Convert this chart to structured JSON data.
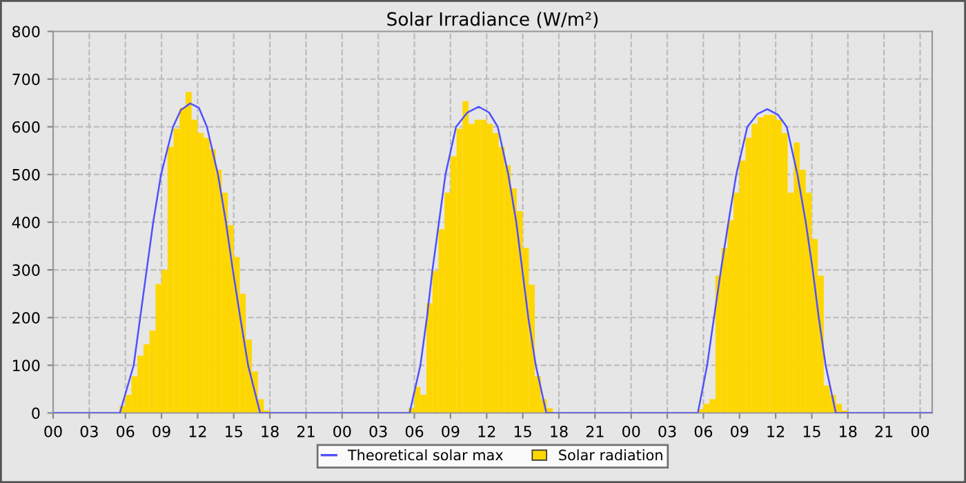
{
  "chart_data": {
    "type": "bar",
    "title": "Solar Irradiance (W/m²)",
    "xlim": [
      0,
      73
    ],
    "ylim": [
      0,
      800
    ],
    "yticks": [
      0,
      100,
      200,
      300,
      400,
      500,
      600,
      700,
      800
    ],
    "xticks": [
      {
        "value": 0,
        "label": "00"
      },
      {
        "value": 3,
        "label": "03"
      },
      {
        "value": 6,
        "label": "06"
      },
      {
        "value": 9,
        "label": "09"
      },
      {
        "value": 12,
        "label": "12"
      },
      {
        "value": 15,
        "label": "15"
      },
      {
        "value": 18,
        "label": "18"
      },
      {
        "value": 21,
        "label": "21"
      },
      {
        "value": 24,
        "label": "00"
      },
      {
        "value": 27,
        "label": "03"
      },
      {
        "value": 30,
        "label": "06"
      },
      {
        "value": 33,
        "label": "09"
      },
      {
        "value": 36,
        "label": "12"
      },
      {
        "value": 39,
        "label": "15"
      },
      {
        "value": 42,
        "label": "18"
      },
      {
        "value": 45,
        "label": "21"
      },
      {
        "value": 48,
        "label": "00"
      },
      {
        "value": 51,
        "label": "03"
      },
      {
        "value": 54,
        "label": "06"
      },
      {
        "value": 57,
        "label": "09"
      },
      {
        "value": 60,
        "label": "12"
      },
      {
        "value": 63,
        "label": "15"
      },
      {
        "value": 66,
        "label": "18"
      },
      {
        "value": 69,
        "label": "21"
      },
      {
        "value": 72,
        "label": "00"
      }
    ],
    "grid": true,
    "legend": "bottom",
    "series": [
      {
        "name": "Theoretical solar max",
        "type": "line",
        "color": "#5050ff",
        "line_style": "solid",
        "marker": "none",
        "x": [
          0,
          5.54,
          6.69,
          7.23,
          7.77,
          8.31,
          8.96,
          9.96,
          10.6,
          11.38,
          12.1,
          12.77,
          13.69,
          14.35,
          14.92,
          15.54,
          16.19,
          17.19,
          29.6,
          30.5,
          31.04,
          31.5,
          32.04,
          32.58,
          33.46,
          34.4,
          35.35,
          36.2,
          36.92,
          37.8,
          38.46,
          38.96,
          39.46,
          40.08,
          40.96,
          53.54,
          54.31,
          54.88,
          55.46,
          56.08,
          56.73,
          57.65,
          58.5,
          59.31,
          60.2,
          60.92,
          61.81,
          62.5,
          63.08,
          63.58,
          64.15,
          65.0,
          73
        ],
        "values": [
          0,
          0,
          100,
          200,
          300,
          400,
          500,
          600,
          635,
          649,
          640,
          600,
          500,
          400,
          300,
          200,
          100,
          0,
          0,
          100,
          200,
          300,
          400,
          500,
          600,
          630,
          642,
          630,
          600,
          500,
          400,
          300,
          200,
          100,
          0,
          0,
          100,
          200,
          300,
          400,
          500,
          600,
          627,
          637,
          625,
          600,
          500,
          400,
          300,
          200,
          100,
          0,
          0
        ]
      },
      {
        "name": "Solar radiation",
        "color": "#ffd700",
        "x": [
          5.5,
          6.0,
          6.5,
          7.0,
          7.5,
          8.0,
          8.5,
          9.0,
          9.5,
          10.0,
          10.5,
          11.0,
          11.5,
          12.0,
          12.5,
          13.0,
          13.5,
          14.0,
          14.5,
          15.0,
          15.5,
          16.0,
          16.5,
          17.0,
          17.5,
          29.5,
          30.0,
          30.5,
          31.0,
          31.5,
          32.0,
          32.5,
          33.0,
          33.5,
          34.0,
          34.5,
          35.0,
          35.5,
          36.0,
          36.5,
          37.0,
          37.5,
          38.0,
          38.5,
          39.0,
          39.5,
          40.0,
          40.5,
          41.0,
          53.5,
          54.0,
          54.5,
          55.0,
          55.5,
          56.0,
          56.5,
          57.0,
          57.5,
          58.0,
          58.5,
          59.0,
          59.5,
          60.0,
          60.5,
          61.0,
          61.5,
          62.0,
          62.5,
          63.0,
          63.5,
          64.0,
          64.5,
          65.0,
          65.5
        ],
        "values": [
          15,
          38,
          77,
          120,
          144,
          173,
          270,
          300,
          558,
          596,
          640,
          673,
          615,
          587,
          577,
          553,
          510,
          462,
          394,
          327,
          250,
          154,
          87,
          29,
          5,
          10,
          55,
          38,
          230,
          298,
          385,
          462,
          538,
          596,
          654,
          606,
          615,
          615,
          606,
          587,
          558,
          519,
          471,
          423,
          346,
          269,
          77,
          29,
          10,
          8,
          19,
          29,
          288,
          346,
          404,
          462,
          529,
          577,
          606,
          620,
          625,
          625,
          615,
          587,
          462,
          567,
          510,
          462,
          365,
          288,
          58,
          38,
          19,
          5
        ]
      }
    ]
  }
}
